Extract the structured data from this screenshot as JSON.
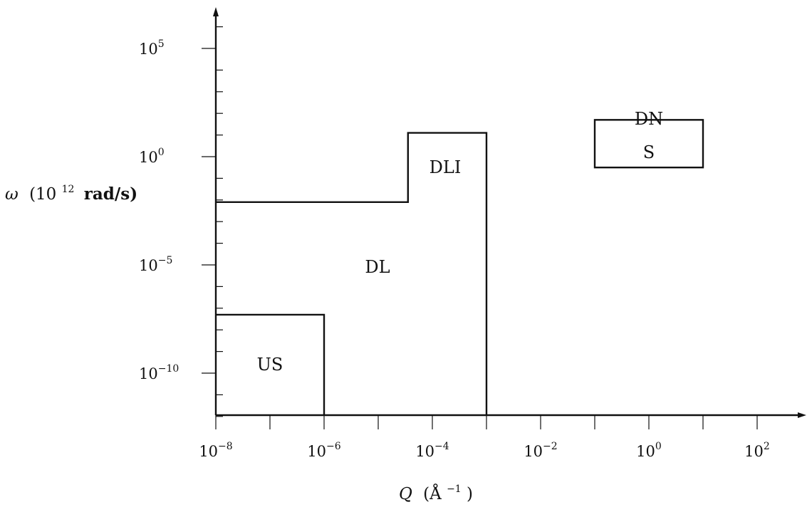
{
  "chart_data": {
    "type": "diagram",
    "x_axis": {
      "label_symbol": "Q",
      "label_unit": "(Å",
      "label_unit_exp": "−1",
      "label_unit_close": ")",
      "scale": "log",
      "range_exp": [
        -8,
        3
      ],
      "major_ticks": [
        {
          "base": "10",
          "exp": "−8"
        },
        {
          "base": "10",
          "exp": "−6"
        },
        {
          "base": "10",
          "exp": "−4"
        },
        {
          "base": "10",
          "exp": "−2"
        },
        {
          "base": "10",
          "exp": "0"
        },
        {
          "base": "10",
          "exp": "2"
        }
      ]
    },
    "y_axis": {
      "label_symbol": "ω",
      "label_unit": "(10",
      "label_unit_exp": "12",
      "label_unit_close": "rad/s)",
      "scale": "log",
      "range_exp": [
        -13,
        20
      ],
      "major_ticks": [
        {
          "base": "10",
          "exp": "−10"
        },
        {
          "base": "10",
          "exp": "−5"
        },
        {
          "base": "10",
          "exp": "0"
        },
        {
          "base": "10",
          "exp": "5"
        }
      ]
    },
    "regions": [
      {
        "label": "US",
        "q_exp_range": [
          -8,
          -6
        ],
        "omega_exp_range": [
          -11.7,
          -7.3
        ]
      },
      {
        "label": "DL",
        "q_exp_range": [
          -8,
          -3
        ],
        "omega_exp_range": [
          -11.7,
          -2.1
        ]
      },
      {
        "label": "DLI",
        "q_exp_range": [
          -4.45,
          -3
        ],
        "omega_exp_range": [
          -11.7,
          1.1
        ]
      },
      {
        "label_line1": "DN",
        "label_line2": "S",
        "q_exp_range": [
          -1,
          1
        ],
        "omega_exp_range": [
          -0.5,
          1.7
        ]
      }
    ]
  }
}
